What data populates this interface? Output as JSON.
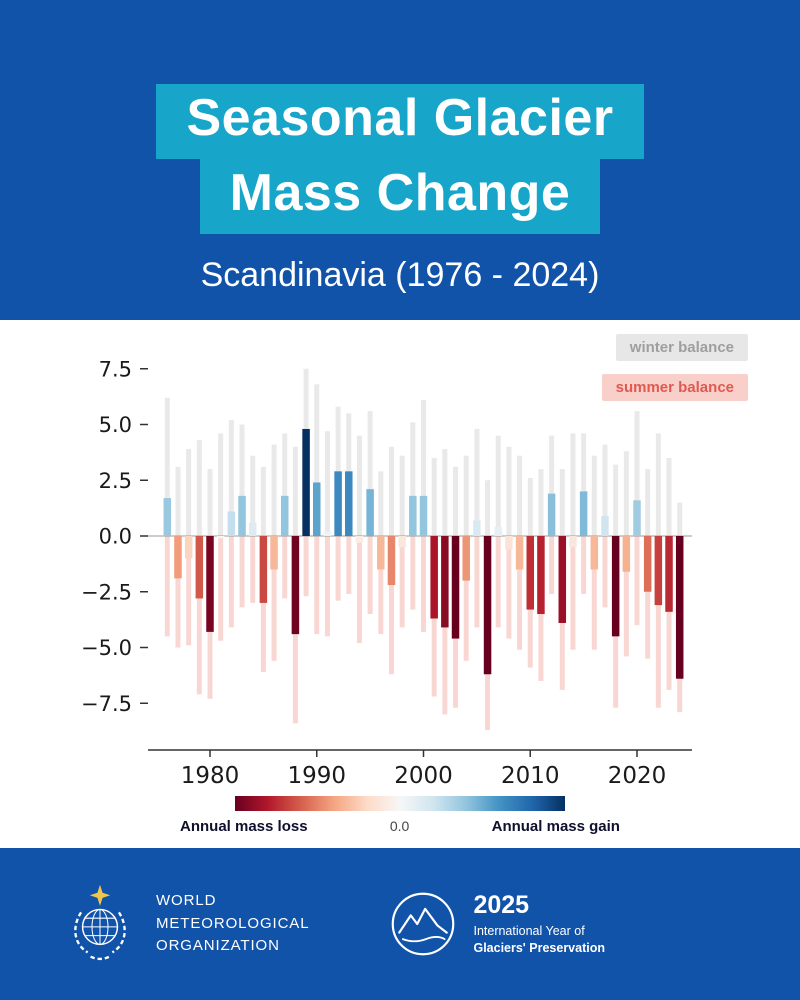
{
  "colors": {
    "band_blue": "#1253aa",
    "title_cyan": "#17a5c9",
    "winter_chip_bg": "#e7e7e7",
    "winter_chip_text": "#9e9e9e",
    "summer_chip_bg": "#f9cfc9",
    "summer_chip_text": "#df5a50"
  },
  "header": {
    "title_line1": "Seasonal Glacier",
    "title_line2": "Mass Change",
    "subtitle": "Scandinavia (1976 - 2024)"
  },
  "legend": {
    "winter_label": "winter balance",
    "summer_label": "summer balance"
  },
  "chart_data": {
    "type": "bar",
    "title": "Seasonal Glacier Mass Change — Scandinavia (1976 - 2024)",
    "xlabel": "",
    "ylabel": "",
    "grid": false,
    "legend_position": "top-right",
    "x": [
      1976,
      1977,
      1978,
      1979,
      1980,
      1981,
      1982,
      1983,
      1984,
      1985,
      1986,
      1987,
      1988,
      1989,
      1990,
      1991,
      1992,
      1993,
      1994,
      1995,
      1996,
      1997,
      1998,
      1999,
      2000,
      2001,
      2002,
      2003,
      2004,
      2005,
      2006,
      2007,
      2008,
      2009,
      2010,
      2011,
      2012,
      2013,
      2014,
      2015,
      2016,
      2017,
      2018,
      2019,
      2020,
      2021,
      2022,
      2023,
      2024
    ],
    "series": [
      {
        "name": "winter balance",
        "color": "#e9e9e9",
        "values": [
          6.2,
          3.1,
          3.9,
          4.3,
          3.0,
          4.6,
          5.2,
          5.0,
          3.6,
          3.1,
          4.1,
          4.6,
          4.0,
          7.5,
          6.8,
          4.7,
          5.8,
          5.5,
          4.5,
          5.6,
          2.9,
          4.0,
          3.6,
          5.1,
          6.1,
          3.5,
          3.9,
          3.1,
          3.6,
          4.8,
          2.5,
          4.5,
          4.0,
          3.6,
          2.6,
          3.0,
          4.5,
          3.0,
          4.6,
          4.6,
          3.6,
          4.1,
          3.2,
          3.8,
          5.6,
          3.0,
          4.6,
          3.5,
          1.5
        ]
      },
      {
        "name": "summer balance",
        "color": "#f8d7d2",
        "values": [
          -4.5,
          -5.0,
          -4.9,
          -7.1,
          -7.3,
          -4.7,
          -4.1,
          -3.2,
          -3.0,
          -6.1,
          -5.6,
          -2.8,
          -8.4,
          -2.7,
          -4.4,
          -4.5,
          -2.9,
          -2.6,
          -4.8,
          -3.5,
          -4.4,
          -6.2,
          -4.1,
          -3.3,
          -4.3,
          -7.2,
          -8.0,
          -7.7,
          -5.6,
          -4.1,
          -8.7,
          -4.1,
          -4.6,
          -5.1,
          -5.9,
          -6.5,
          -2.6,
          -6.9,
          -5.1,
          -2.6,
          -5.1,
          -3.2,
          -7.7,
          -5.4,
          -4.0,
          -5.5,
          -7.7,
          -6.9,
          -7.9
        ]
      },
      {
        "name": "annual balance",
        "color_by_value": true,
        "values": [
          1.7,
          -1.9,
          -1.0,
          -2.8,
          -4.3,
          -0.1,
          1.1,
          1.8,
          0.6,
          -3.0,
          -1.5,
          1.8,
          -4.4,
          4.8,
          2.4,
          0.2,
          2.9,
          2.9,
          -0.3,
          2.1,
          -1.5,
          -2.2,
          -0.5,
          1.8,
          1.8,
          -3.7,
          -4.1,
          -4.6,
          -2.0,
          0.7,
          -6.2,
          0.4,
          -0.6,
          -1.5,
          -3.3,
          -3.5,
          1.9,
          -3.9,
          -0.5,
          2.0,
          -1.5,
          0.9,
          -4.5,
          -1.6,
          1.6,
          -2.5,
          -3.1,
          -3.4,
          -6.4
        ]
      }
    ],
    "yticks": [
      7.5,
      5.0,
      2.5,
      0.0,
      -2.5,
      -5.0,
      -7.5
    ],
    "ytick_labels": [
      "7.5",
      "5.0",
      "2.5",
      "0.0",
      "−2.5",
      "−5.0",
      "−7.5"
    ],
    "xticks": [
      1980,
      1990,
      2000,
      2010,
      2020
    ],
    "xtick_labels": [
      "1980",
      "1990",
      "2000",
      "2010",
      "2020"
    ],
    "ylim": [
      -9.6,
      8.4
    ],
    "colormap": {
      "name": "RdBu",
      "vmin": -4.5,
      "vmax": 4.5,
      "stops": [
        {
          "t": 0.0,
          "color": "#67001f"
        },
        {
          "t": 0.1,
          "color": "#b2182b"
        },
        {
          "t": 0.2,
          "color": "#d6604d"
        },
        {
          "t": 0.3,
          "color": "#f4a582"
        },
        {
          "t": 0.4,
          "color": "#fddbc7"
        },
        {
          "t": 0.5,
          "color": "#f7f7f7"
        },
        {
          "t": 0.6,
          "color": "#d1e5f0"
        },
        {
          "t": 0.7,
          "color": "#92c5de"
        },
        {
          "t": 0.8,
          "color": "#4393c3"
        },
        {
          "t": 0.9,
          "color": "#2166ac"
        },
        {
          "t": 1.0,
          "color": "#053061"
        }
      ]
    }
  },
  "colorbar": {
    "loss_label": "Annual mass loss",
    "zero_label": "0.0",
    "gain_label": "Annual mass gain"
  },
  "footer": {
    "wmo_lines": [
      "WORLD",
      "METEOROLOGICAL",
      "ORGANIZATION"
    ],
    "iygp_year": "2025",
    "iygp_line1": "International Year of",
    "iygp_line2": "Glaciers' Preservation"
  }
}
